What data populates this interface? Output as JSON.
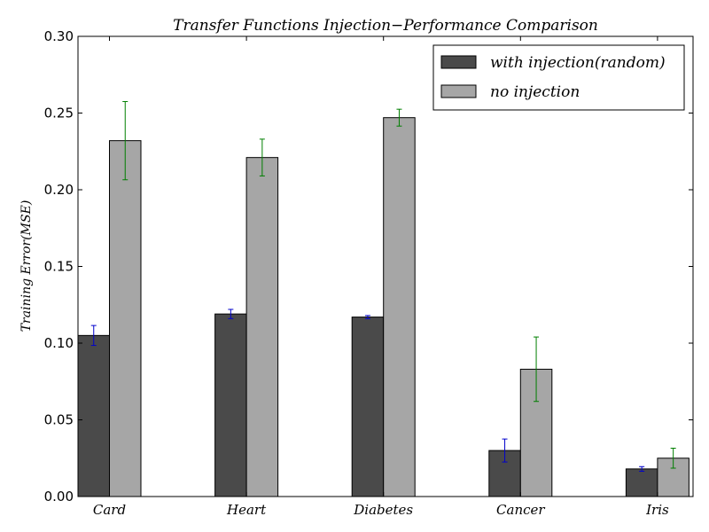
{
  "chart_data": {
    "type": "bar",
    "title": "Transfer Functions Injection−Performance Comparison",
    "xlabel": "",
    "ylabel": "Training Error(MSE)",
    "categories": [
      "Card",
      "Heart",
      "Diabetes",
      "Cancer",
      "Iris"
    ],
    "ylim": [
      0,
      0.3
    ],
    "yticks": [
      0.0,
      0.05,
      0.1,
      0.15,
      0.2,
      0.25,
      0.3
    ],
    "ytick_labels": [
      "0.00",
      "0.05",
      "0.10",
      "0.15",
      "0.20",
      "0.25",
      "0.30"
    ],
    "grid": false,
    "legend_position": "top-right",
    "series": [
      {
        "name": "with injection(random)",
        "color": "#4a4a4a",
        "error_color": "#0000cc",
        "values": [
          0.105,
          0.119,
          0.117,
          0.03,
          0.018
        ],
        "errors": [
          0.0065,
          0.003,
          0.001,
          0.0075,
          0.0015
        ]
      },
      {
        "name": "no injection",
        "color": "#a6a6a6",
        "error_color": "#007f00",
        "values": [
          0.232,
          0.221,
          0.247,
          0.083,
          0.025
        ],
        "errors": [
          0.0255,
          0.012,
          0.0055,
          0.021,
          0.0065
        ]
      }
    ]
  }
}
